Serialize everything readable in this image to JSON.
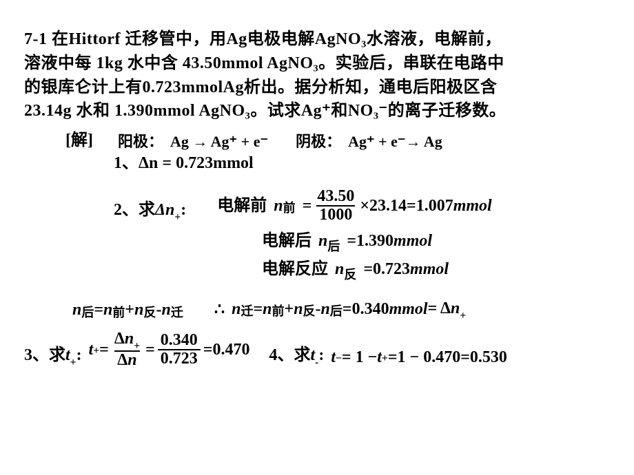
{
  "problem": {
    "l1": "7-1 在Hittorf 迁移管中，用Ag电极电解AgNO₃水溶液，电解前，",
    "l2": "溶液中每 1kg 水中含 43.50mmol AgNO₃。实验后，串联在电路中",
    "l3": "的银库仑计上有0.723mmolAg析出。据分析知，通电后阳极区含",
    "l4": "23.14g 水和 1.390mmol AgNO₃。试求Ag⁺和NO₃⁻的离子迁移数。"
  },
  "solution_label": "[解]",
  "electrode": {
    "anode_label": "阳极：",
    "anode_eq": "Ag → Ag⁺ + e⁻",
    "cathode_label": "阴极：",
    "cathode_eq": "Ag⁺ + e⁻→ Ag"
  },
  "step1": {
    "label": "1、",
    "eq": "Δn = 0.723mmol"
  },
  "step2": {
    "label": "2、求Δn₊:",
    "before_label": "电解前",
    "frac_num": "43.50",
    "frac_den": "1000",
    "times_val": "23.14",
    "before_result": "1.007",
    "after_label": "电解后",
    "after_val": "1.390",
    "react_label": "电解反应",
    "react_val": "0.723",
    "unit": "mmol"
  },
  "balance": {
    "left_parts": [
      "n",
      "后",
      " = ",
      "n",
      "前",
      " + ",
      "n",
      "反",
      " - ",
      "n",
      "迁"
    ],
    "therefore": "∴",
    "result_val": "0.340",
    "unit": "mmol",
    "delta": "= Δn₊"
  },
  "step3": {
    "label": "3、求t₊:",
    "frac1_num": "Δn₊",
    "frac1_den": "Δn",
    "frac2_num": "0.340",
    "frac2_den": "0.723",
    "result": "0.470"
  },
  "step4": {
    "label": "4、求t₋:",
    "eq_mid": "1 − 0.470",
    "result": "0.530"
  }
}
